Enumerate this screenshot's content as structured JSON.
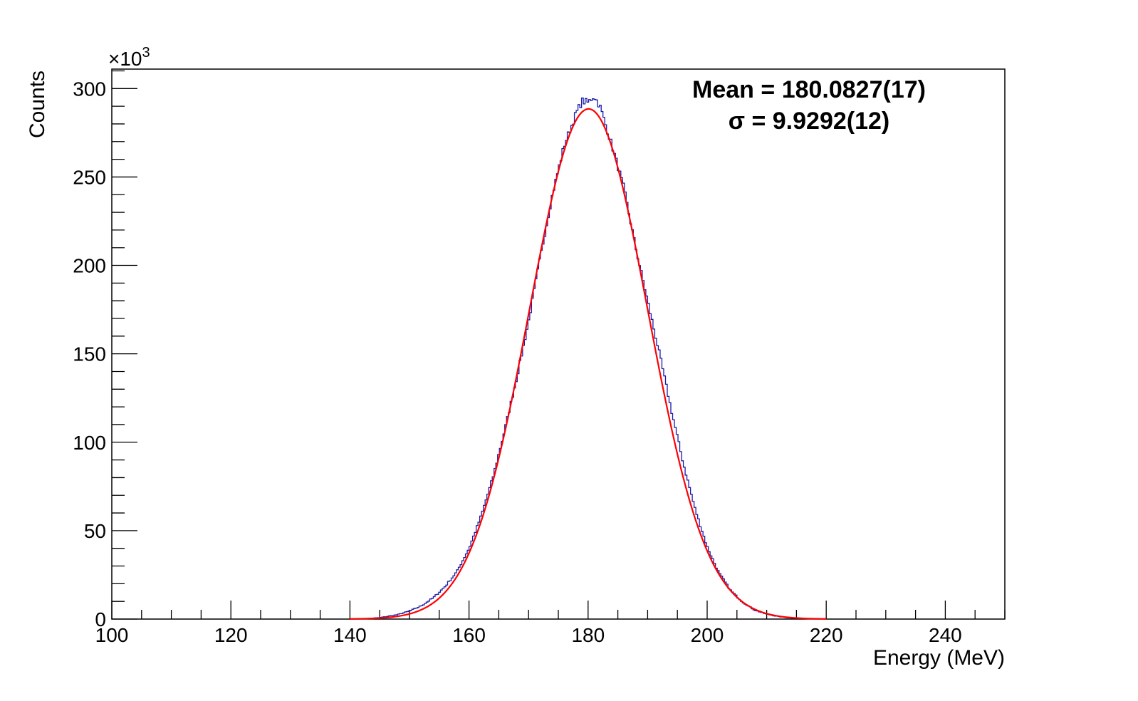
{
  "chart_data": {
    "type": "line",
    "xlabel": "Energy (MeV)",
    "ylabel": "Counts",
    "y_multiplier": "×10",
    "y_multiplier_exp": "3",
    "xlim": [
      100,
      250
    ],
    "ylim": [
      0,
      311
    ],
    "x_ticks": [
      100,
      120,
      140,
      160,
      180,
      200,
      220,
      240
    ],
    "y_ticks": [
      0,
      50,
      100,
      150,
      200,
      250,
      300
    ],
    "grid": false,
    "annotations": [
      "Mean = 180.0827(17)",
      "σ = 9.9292(12)"
    ],
    "series": [
      {
        "role": "histogram",
        "color": "#1a1aa6",
        "x": [
          142,
          145,
          148,
          150,
          152,
          154,
          156,
          158,
          160,
          162,
          164,
          166,
          168,
          170,
          172,
          174,
          176,
          178,
          179,
          180,
          181,
          182,
          184,
          186,
          188,
          190,
          192,
          194,
          196,
          198,
          200,
          202,
          204,
          206,
          208,
          210,
          212,
          214,
          216,
          218
        ],
        "values": [
          0.1,
          0.8,
          2.5,
          4.5,
          7.5,
          12.0,
          18.5,
          27.0,
          40.0,
          58.0,
          80.0,
          107.0,
          136.0,
          168.0,
          205.0,
          240.0,
          268.0,
          286.0,
          293.0,
          292.0,
          296.0,
          290.0,
          268.0,
          244.0,
          210.0,
          180.0,
          150.0,
          118.0,
          88.0,
          62.0,
          41.0,
          26.0,
          16.0,
          9.5,
          5.0,
          2.8,
          1.4,
          0.6,
          0.3,
          0.1
        ]
      },
      {
        "role": "gaussian fit",
        "color": "#ff0000",
        "mean": 180.0827,
        "sigma": 9.9292,
        "amplitude": 288.5
      }
    ]
  }
}
